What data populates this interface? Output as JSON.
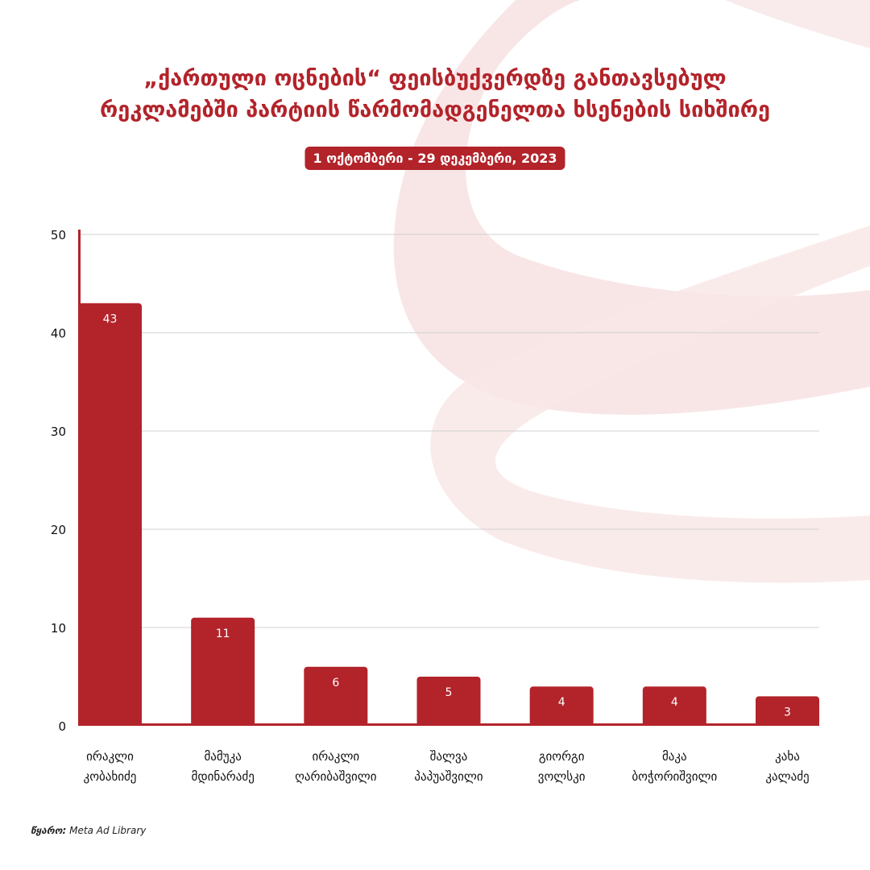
{
  "title": {
    "line1": "„ქართული ოცნების“ ფეისბუქვერდზე განთავსებულ",
    "line2": "რეკლამებში პარტიის წარმომადგენელთა ხსენების სიხშირე"
  },
  "date_range": "1 ოქტომბერი - 29 დეკემბერი, 2023",
  "source": {
    "label": "წყარო:",
    "value": "Meta Ad Library"
  },
  "colors": {
    "accent": "#b3232a",
    "grid": "#d0d0d0",
    "decor": "#f5dcdc"
  },
  "chart_data": {
    "type": "bar",
    "categories": [
      [
        "ირაკლი",
        "კობახიძე"
      ],
      [
        "მამუკა",
        "მდინარაძე"
      ],
      [
        "ირაკლი",
        "ღარიბაშვილი"
      ],
      [
        "შალვა",
        "პაპუაშვილი"
      ],
      [
        "გიორგი",
        "ვოლსკი"
      ],
      [
        "მაკა",
        "ბოჭორიშვილი"
      ],
      [
        "კახა",
        "კალაძე"
      ]
    ],
    "values": [
      43,
      11,
      6,
      5,
      4,
      4,
      3
    ],
    "ylim": [
      0,
      50
    ],
    "yticks": [
      0,
      10,
      20,
      30,
      40,
      50
    ],
    "grid": true,
    "data_labels": true
  }
}
